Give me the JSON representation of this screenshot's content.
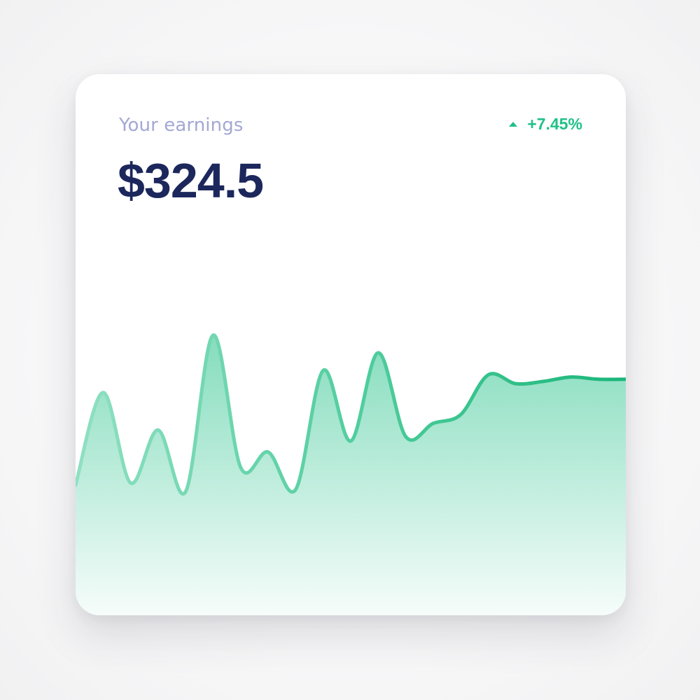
{
  "widget": {
    "label": "Your earnings",
    "amount": "$324.5",
    "change": "+7.45%",
    "change_icon": "triangle-up-icon"
  },
  "colors": {
    "label": "#a3a8d4",
    "amount": "#1c275c",
    "accent": "#20c088"
  },
  "chart_data": {
    "type": "area",
    "title": "",
    "xlabel": "",
    "ylabel": "",
    "grid": false,
    "legend": "none",
    "ylim": [
      0,
      100
    ],
    "x": [
      0,
      1,
      2,
      3,
      4,
      5,
      6,
      7,
      8,
      9,
      10,
      11,
      12,
      13,
      14,
      15,
      16,
      17,
      18,
      19,
      20
    ],
    "series": [
      {
        "values": [
          20,
          62,
          21,
          45,
          17,
          88,
          28,
          35,
          18,
          72,
          40,
          80,
          42,
          48,
          52,
          70,
          66,
          67,
          69,
          68,
          68
        ]
      }
    ]
  }
}
